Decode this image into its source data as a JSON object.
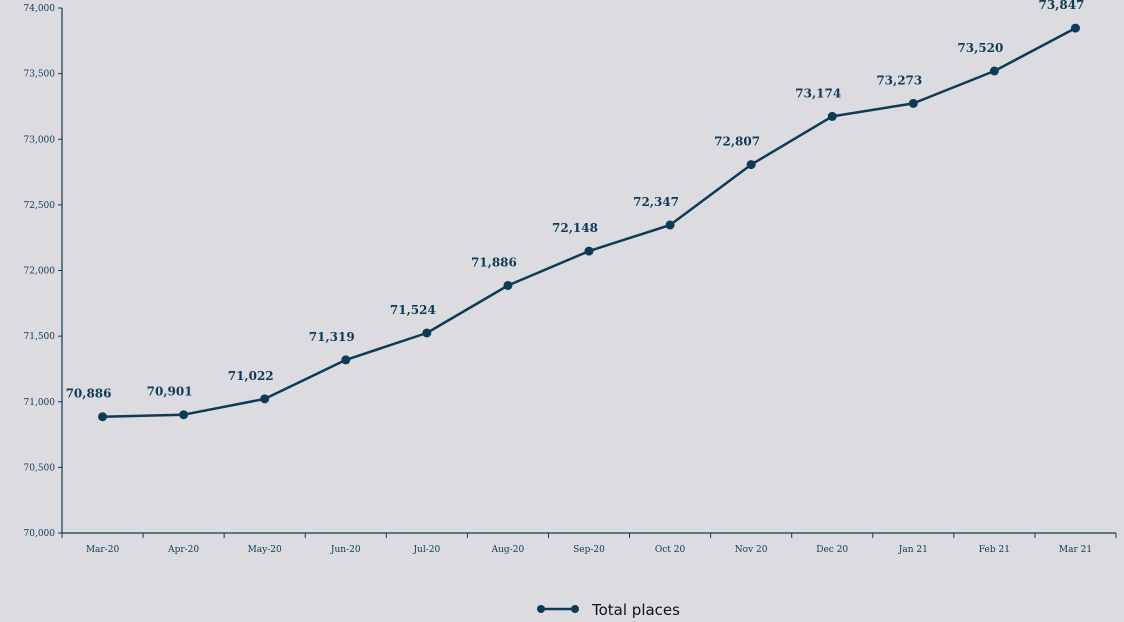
{
  "chart_data": {
    "type": "line",
    "categories": [
      "Mar-20",
      "Apr-20",
      "May-20",
      "Jun-20",
      "Jul-20",
      "Aug-20",
      "Sep-20",
      "Oct 20",
      "Nov 20",
      "Dec 20",
      "Jan 21",
      "Feb 21",
      "Mar 21"
    ],
    "series": [
      {
        "name": "Total places",
        "values": [
          70886,
          70901,
          71022,
          71319,
          71524,
          71886,
          72148,
          72347,
          72807,
          73174,
          73273,
          73520,
          73847
        ],
        "labels": [
          "70,886",
          "70,901",
          "71,022",
          "71,319",
          "71,524",
          "71,886",
          "72,148",
          "72,347",
          "72,807",
          "73,174",
          "73,273",
          "73,520",
          "73,847"
        ]
      }
    ],
    "ylim": [
      70000,
      74000
    ],
    "yticks": [
      70000,
      70500,
      71000,
      71500,
      72000,
      72500,
      73000,
      73500,
      74000
    ],
    "ytick_labels": [
      "70,000",
      "70,500",
      "71,000",
      "71,500",
      "72,000",
      "72,500",
      "73,000",
      "73,500",
      "74,000"
    ],
    "grid": false,
    "legend_position": "bottom-center",
    "color": "#0d3a57"
  }
}
